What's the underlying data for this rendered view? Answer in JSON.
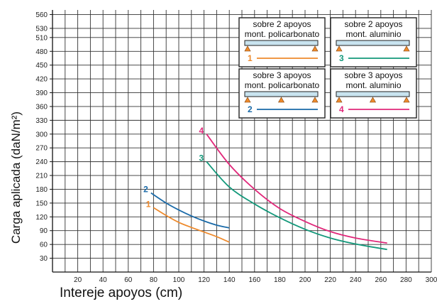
{
  "chart_data": {
    "type": "line",
    "title": "",
    "xlabel": "Intereje apoyos (cm)",
    "ylabel": "Carga aplicada (daN/m²)",
    "xlim": [
      0,
      300
    ],
    "ylim": [
      0,
      570
    ],
    "x_ticks": [
      20,
      40,
      60,
      80,
      100,
      120,
      140,
      160,
      180,
      200,
      220,
      240,
      260,
      280,
      300
    ],
    "y_ticks": [
      30,
      60,
      90,
      120,
      150,
      180,
      210,
      240,
      270,
      300,
      330,
      360,
      390,
      420,
      450,
      480,
      510,
      530,
      560
    ],
    "grid": true,
    "series": [
      {
        "id": "1",
        "color": "#ee8a2c",
        "x": [
          80,
          90,
          100,
          110,
          120,
          130,
          140
        ],
        "y": [
          140,
          123,
          108,
          97,
          87,
          77,
          65
        ]
      },
      {
        "id": "2",
        "color": "#1a6aa8",
        "x": [
          78,
          90,
          100,
          110,
          120,
          130,
          140
        ],
        "y": [
          172,
          150,
          135,
          122,
          111,
          102,
          96
        ]
      },
      {
        "id": "3",
        "color": "#13987a",
        "x": [
          122,
          140,
          160,
          180,
          200,
          220,
          240,
          265
        ],
        "y": [
          240,
          185,
          148,
          118,
          93,
          74,
          61,
          49
        ]
      },
      {
        "id": "4",
        "color": "#e0287a",
        "x": [
          122,
          140,
          160,
          180,
          200,
          220,
          240,
          265
        ],
        "y": [
          300,
          234,
          180,
          138,
          110,
          88,
          74,
          63
        ]
      }
    ],
    "legend": {
      "placement": "top-right",
      "entries": [
        {
          "series": "1",
          "line1": "sobre 2 apoyos",
          "line2": "mont. policarbonato",
          "supports": 2
        },
        {
          "series": "3",
          "line1": "sobre 2 apoyos",
          "line2": "mont. aluminio",
          "supports": 2
        },
        {
          "series": "2",
          "line1": "sobre 3 apoyos",
          "line2": "mont. policarbonato",
          "supports": 3
        },
        {
          "series": "4",
          "line1": "sobre 3 apoyos",
          "line2": "mont. aluminio",
          "supports": 3
        }
      ]
    }
  }
}
